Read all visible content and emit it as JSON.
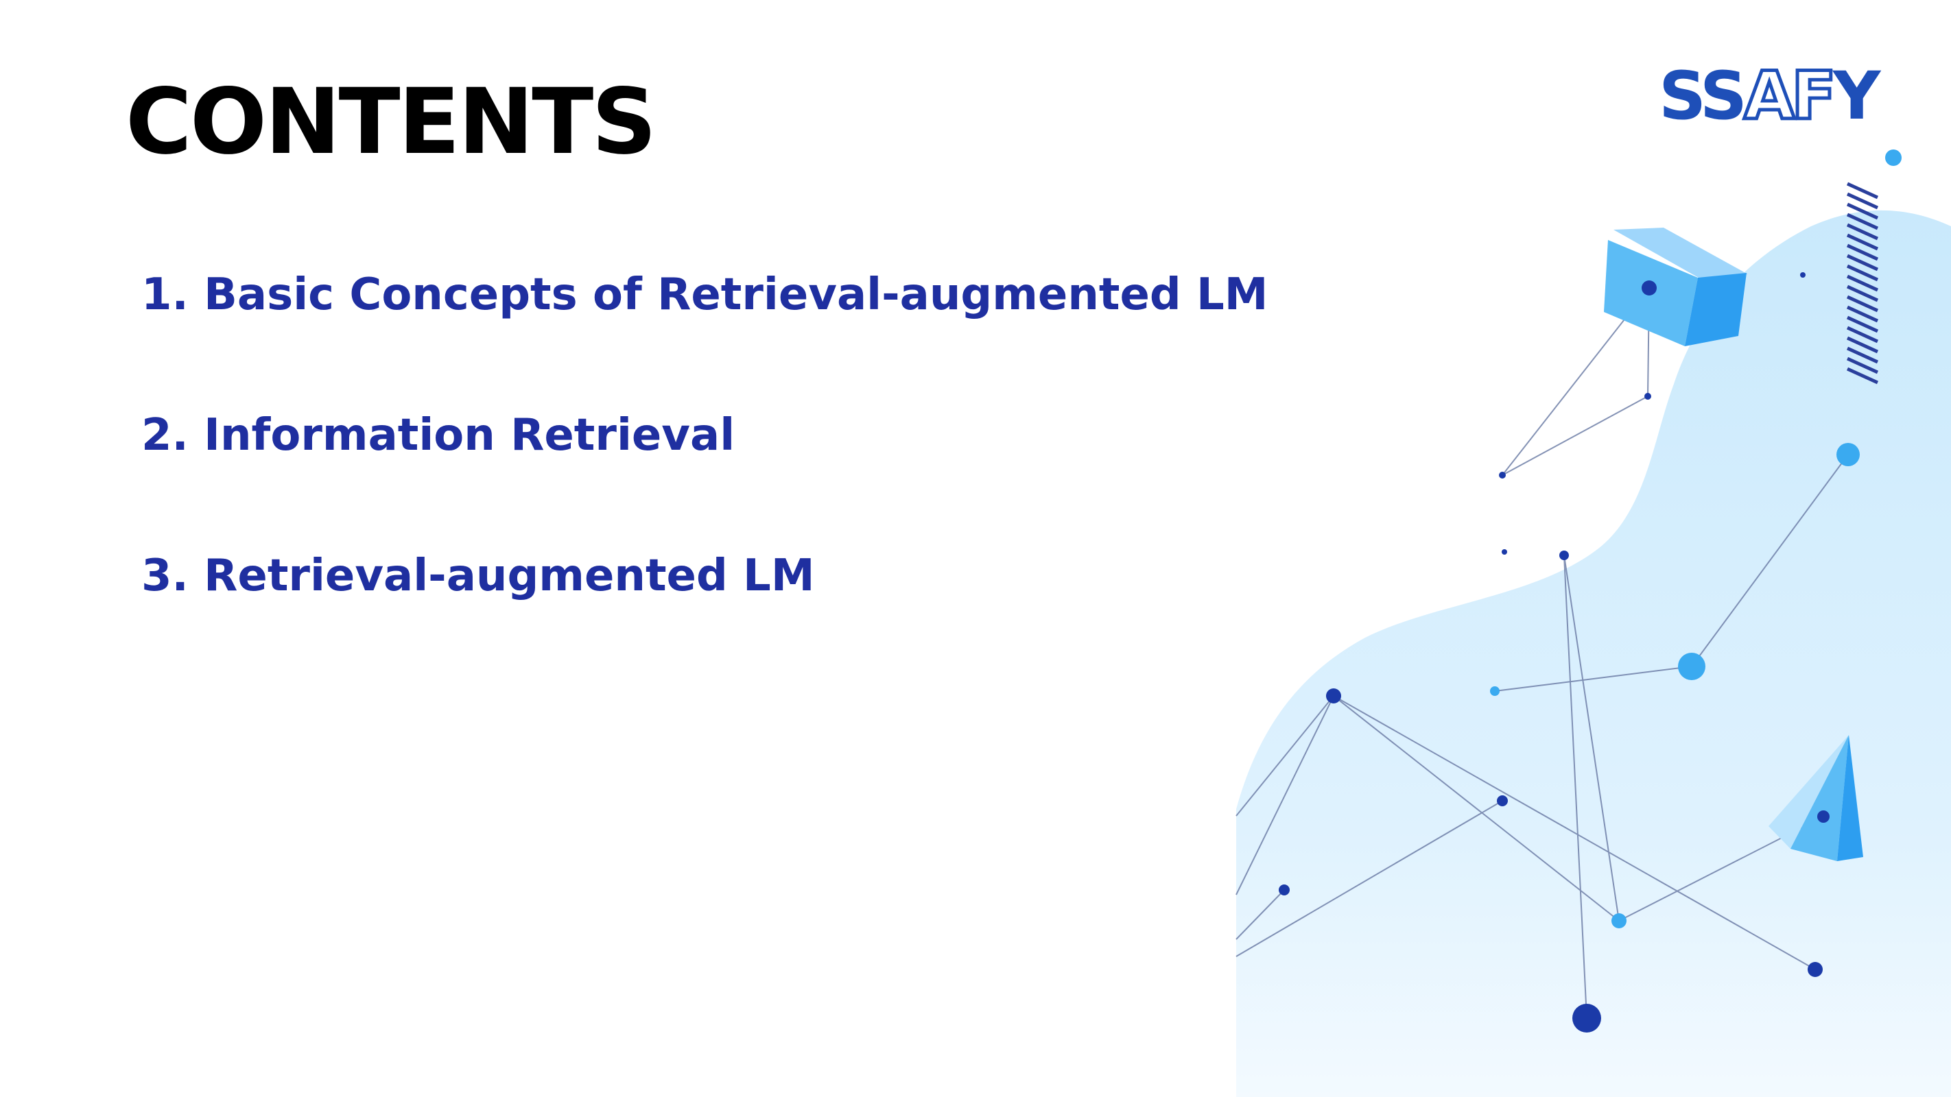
{
  "slide": {
    "title": "CONTENTS",
    "items": [
      "1. Basic Concepts of Retrieval-augmented LM",
      "2. Information Retrieval",
      "3. Retrieval-augmented LM"
    ]
  },
  "logo": {
    "text": "SSAFY",
    "part_solid_1": "SS",
    "part_outline": "AF",
    "part_solid_2": "Y"
  },
  "colors": {
    "title": "#000000",
    "items": "#1f2fa0",
    "logo": "#1e4fb8",
    "blob_light": "#d8efff",
    "node_dark": "#1b3aa8",
    "node_light": "#3aaaf0"
  }
}
